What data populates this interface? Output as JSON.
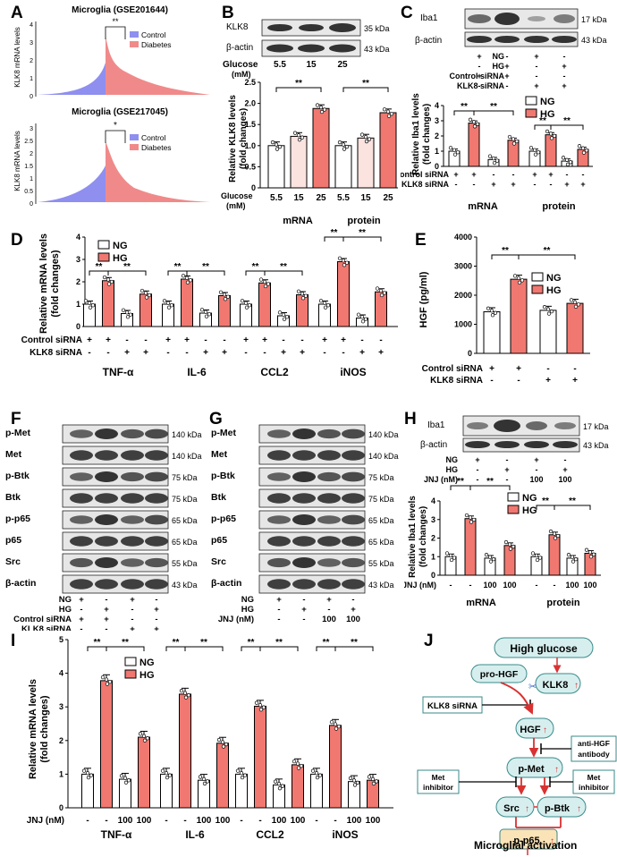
{
  "panels": {
    "A": "A",
    "B": "B",
    "C": "C",
    "D": "D",
    "E": "E",
    "F": "F",
    "G": "G",
    "H": "H",
    "I": "I",
    "J": "J"
  },
  "colors": {
    "ng": "#ffffff",
    "hg": "#f07870",
    "control": "#8f8ff0",
    "diabetes": "#f08a8a",
    "flow_fill": "#d6efee",
    "flow_border": "#3a8a8a",
    "final_fill": "#fbe3b8",
    "arrow": "#d83232"
  },
  "panelA": {
    "top": {
      "title": "Microglia (GSE201644)",
      "ylabel": "KLK8 mRNA levels",
      "yticks": [
        "0",
        "1",
        "2",
        "3",
        "4"
      ],
      "sig": "**",
      "legend": [
        "Control",
        "Diabetes"
      ]
    },
    "bottom": {
      "title": "Microglia (GSE217045)",
      "ylabel": "KLK8 mRNA levels",
      "yticks": [
        "0",
        "0.5",
        "1",
        "1.5",
        "2",
        "2.5",
        "3"
      ],
      "sig": "*",
      "legend": [
        "Control",
        "Diabetes"
      ]
    }
  },
  "panelB": {
    "blot_labels": [
      "KLK8",
      "β-actin"
    ],
    "blot_kda": [
      "35 kDa",
      "43 kDa"
    ],
    "glucose_label": "Glucose",
    "glucose_unit": "(mM)",
    "glucose_values": [
      "5.5",
      "15",
      "25"
    ],
    "ylabel1": "Relative KLK8 levels",
    "ylabel2": "(fold changes)",
    "yticks": [
      "0",
      "0.5",
      "1.0",
      "1.5",
      "2.0",
      "2.5"
    ],
    "xlabel_top": "Glucose",
    "xlabel_unit": "(mM)",
    "groups": [
      "mRNA",
      "protein"
    ],
    "sig": [
      "**",
      "**"
    ]
  },
  "panelC": {
    "blot_labels": [
      "Iba1",
      "β-actin"
    ],
    "blot_kda": [
      "17 kDa",
      "43 kDa"
    ],
    "conditions": [
      {
        "name": "NG",
        "vals": [
          "+",
          "-",
          "+",
          "-"
        ]
      },
      {
        "name": "HG",
        "vals": [
          "-",
          "+",
          "-",
          "+"
        ]
      },
      {
        "name": "Control siRNA",
        "vals": [
          "+",
          "+",
          "-",
          "-"
        ]
      },
      {
        "name": "KLK8 siRNA",
        "vals": [
          "-",
          "-",
          "+",
          "+"
        ]
      }
    ],
    "ylabel1": "Relative Iba1 levels",
    "ylabel2": "(fold changes)",
    "yticks": [
      "0",
      "1",
      "2",
      "3",
      "4"
    ],
    "legend": [
      "NG",
      "HG"
    ],
    "groups": [
      "mRNA",
      "protein"
    ],
    "x_conditions": [
      {
        "name": "Control siRNA",
        "vals": [
          "+",
          "+",
          "-",
          "-"
        ]
      },
      {
        "name": "KLK8 siRNA",
        "vals": [
          "-",
          "-",
          "+",
          "+"
        ]
      }
    ]
  },
  "panelD": {
    "ylabel1": "Relative mRNA levels",
    "ylabel2": "(fold changes)",
    "yticks": [
      "0",
      "1",
      "2",
      "3",
      "4"
    ],
    "legend": [
      "NG",
      "HG"
    ],
    "groups": [
      "TNF-α",
      "IL-6",
      "CCL2",
      "iNOS"
    ],
    "x_conditions": [
      {
        "name": "Control siRNA",
        "vals": [
          "+",
          "+",
          "-",
          "-"
        ]
      },
      {
        "name": "KLK8 siRNA",
        "vals": [
          "-",
          "-",
          "+",
          "+"
        ]
      }
    ]
  },
  "panelE": {
    "ylabel": "HGF (pg/ml)",
    "yticks": [
      "0",
      "1000",
      "2000",
      "3000",
      "4000"
    ],
    "legend": [
      "NG",
      "HG"
    ],
    "x_conditions": [
      {
        "name": "Control siRNA",
        "vals": [
          "+",
          "+",
          "-",
          "-"
        ]
      },
      {
        "name": "KLK8 siRNA",
        "vals": [
          "-",
          "-",
          "+",
          "+"
        ]
      }
    ]
  },
  "panelF": {
    "blot_labels": [
      "p-Met",
      "Met",
      "p-Btk",
      "Btk",
      "p-p65",
      "p65",
      "Src",
      "β-actin"
    ],
    "blot_kda": [
      "140 kDa",
      "140 kDa",
      "75 kDa",
      "75 kDa",
      "65 kDa",
      "65 kDa",
      "55 kDa",
      "43 kDa"
    ],
    "conditions": [
      {
        "name": "NG",
        "vals": [
          "+",
          "-",
          "+",
          "-"
        ]
      },
      {
        "name": "HG",
        "vals": [
          "-",
          "+",
          "-",
          "+"
        ]
      },
      {
        "name": "Control siRNA",
        "vals": [
          "+",
          "+",
          "-",
          "-"
        ]
      },
      {
        "name": "KLK8 siRNA",
        "vals": [
          "-",
          "-",
          "+",
          "+"
        ]
      }
    ]
  },
  "panelG": {
    "blot_labels": [
      "p-Met",
      "Met",
      "p-Btk",
      "Btk",
      "p-p65",
      "p65",
      "Src",
      "β-actin"
    ],
    "blot_kda": [
      "140 kDa",
      "140 kDa",
      "75 kDa",
      "75 kDa",
      "65 kDa",
      "65 kDa",
      "55 kDa",
      "43 kDa"
    ],
    "conditions": [
      {
        "name": "NG",
        "vals": [
          "+",
          "-",
          "+",
          "-"
        ]
      },
      {
        "name": "HG",
        "vals": [
          "-",
          "+",
          "-",
          "+"
        ]
      },
      {
        "name": "JNJ (nM)",
        "vals": [
          "-",
          "-",
          "100",
          "100"
        ]
      }
    ]
  },
  "panelH": {
    "blot_labels": [
      "Iba1",
      "β-actin"
    ],
    "blot_kda": [
      "17 kDa",
      "43 kDa"
    ],
    "conditions": [
      {
        "name": "NG",
        "vals": [
          "+",
          "-",
          "+",
          "-"
        ]
      },
      {
        "name": "HG",
        "vals": [
          "-",
          "+",
          "-",
          "+"
        ]
      },
      {
        "name": "JNJ (nM)",
        "vals": [
          "-",
          "-",
          "100",
          "100"
        ]
      }
    ],
    "ylabel1": "Relative Iba1 levels",
    "ylabel2": "(fold changes)",
    "yticks": [
      "0",
      "1",
      "2",
      "3",
      "4"
    ],
    "legend": [
      "NG",
      "HG"
    ],
    "groups": [
      "mRNA",
      "protein"
    ],
    "x_conditions": [
      {
        "name": "JNJ (nM)",
        "vals": [
          "-",
          "-",
          "100",
          "100"
        ]
      }
    ]
  },
  "panelI": {
    "ylabel1": "Relative mRNA levels",
    "ylabel2": "(fold changes)",
    "yticks": [
      "0",
      "1",
      "2",
      "3",
      "4",
      "5"
    ],
    "legend": [
      "NG",
      "HG"
    ],
    "groups": [
      "TNF-α",
      "IL-6",
      "CCL2",
      "iNOS"
    ],
    "x_conditions": [
      {
        "name": "JNJ (nM)",
        "vals": [
          "-",
          "-",
          "100",
          "100"
        ]
      }
    ]
  },
  "panelJ": {
    "high_glucose": "High glucose",
    "pro_hgf": "pro-HGF",
    "klk8": "KLK8",
    "klk8_sirna": "KLK8 siRNA",
    "hgf": "HGF",
    "anti_hgf1": "anti-HGF",
    "anti_hgf2": "antibody",
    "p_met": "p-Met",
    "met_inh1": "Met",
    "met_inh2": "inhibitor",
    "src": "Src",
    "p_btk": "p-Btk",
    "p_p65": "p-p65",
    "outcome": "Microglial activation"
  },
  "chart_data": [
    {
      "panel": "B",
      "type": "bar",
      "categories": [
        "mRNA 5.5",
        "mRNA 15",
        "mRNA 25",
        "protein 5.5",
        "protein 15",
        "protein 25"
      ],
      "values": [
        1.0,
        1.22,
        1.88,
        1.0,
        1.18,
        1.78
      ],
      "ylim": [
        0,
        2.5
      ],
      "ylabel": "Relative KLK8 levels (fold changes)"
    },
    {
      "panel": "C",
      "type": "bar",
      "groups": [
        "mRNA",
        "protein"
      ],
      "series": [
        {
          "name": "mRNA",
          "values": [
            1.0,
            2.85,
            0.45,
            1.72
          ]
        },
        {
          "name": "protein",
          "values": [
            1.0,
            2.08,
            0.35,
            1.12
          ]
        }
      ],
      "ylim": [
        0,
        4
      ]
    },
    {
      "panel": "D",
      "type": "bar",
      "groups": [
        "TNF-α",
        "IL-6",
        "CCL2",
        "iNOS"
      ],
      "series": [
        {
          "name": "TNF-α",
          "values": [
            1.0,
            2.05,
            0.58,
            1.45
          ]
        },
        {
          "name": "IL-6",
          "values": [
            1.0,
            2.12,
            0.6,
            1.38
          ]
        },
        {
          "name": "CCL2",
          "values": [
            1.0,
            1.95,
            0.48,
            1.42
          ]
        },
        {
          "name": "iNOS",
          "values": [
            1.0,
            2.9,
            0.38,
            1.55
          ]
        }
      ],
      "ylim": [
        0,
        4
      ]
    },
    {
      "panel": "E",
      "type": "bar",
      "categories": [
        "NG+Ctrl",
        "HG+Ctrl",
        "NG+KLK8",
        "HG+KLK8"
      ],
      "values": [
        1430,
        2550,
        1480,
        1720
      ],
      "ylim": [
        0,
        4000
      ]
    },
    {
      "panel": "H",
      "type": "bar",
      "groups": [
        "mRNA",
        "protein"
      ],
      "series": [
        {
          "name": "mRNA",
          "values": [
            1.0,
            3.05,
            0.92,
            1.6
          ]
        },
        {
          "name": "protein",
          "values": [
            1.0,
            2.18,
            0.92,
            1.18
          ]
        }
      ],
      "ylim": [
        0,
        4
      ]
    },
    {
      "panel": "I",
      "type": "bar",
      "groups": [
        "TNF-α",
        "IL-6",
        "CCL2",
        "iNOS"
      ],
      "series": [
        {
          "name": "TNF-α",
          "values": [
            1.0,
            3.78,
            0.85,
            2.1
          ]
        },
        {
          "name": "IL-6",
          "values": [
            1.0,
            3.38,
            0.82,
            1.92
          ]
        },
        {
          "name": "CCL2",
          "values": [
            1.0,
            3.02,
            0.68,
            1.28
          ]
        },
        {
          "name": "iNOS",
          "values": [
            1.0,
            2.45,
            0.78,
            0.82
          ]
        }
      ],
      "ylim": [
        0,
        5
      ]
    }
  ]
}
